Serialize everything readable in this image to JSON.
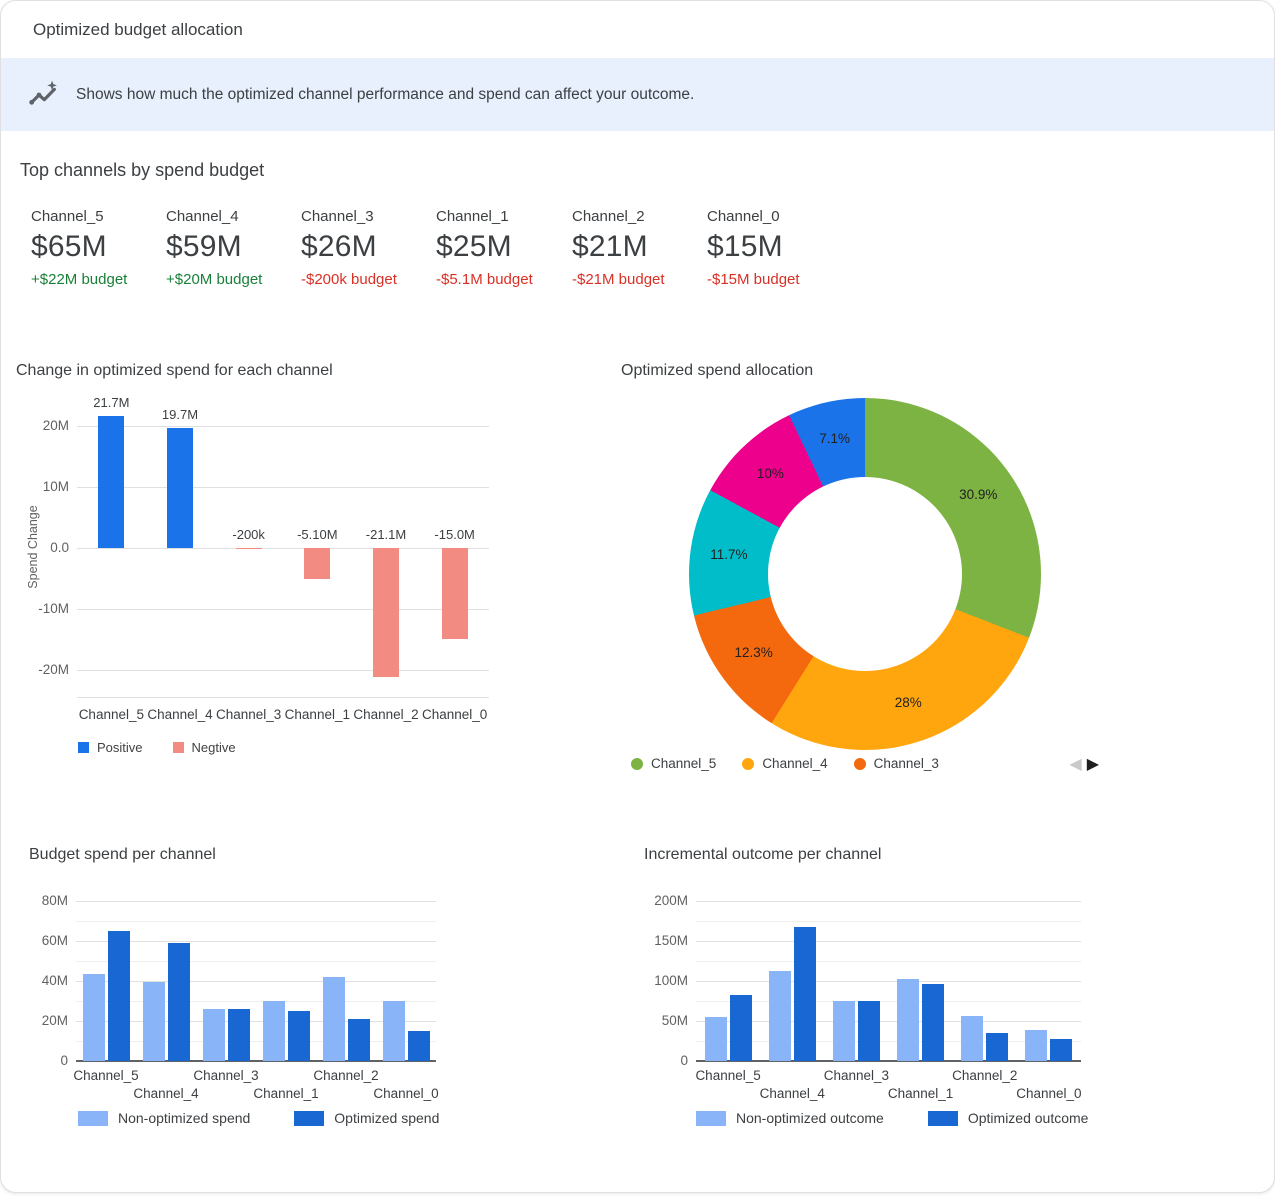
{
  "header": {
    "title": "Optimized budget allocation"
  },
  "banner": {
    "icon": "insights-icon",
    "text": "Shows how much the optimized channel performance and spend can affect your outcome.",
    "background": "#E8F0FE"
  },
  "top_channels": {
    "heading": "Top channels by spend budget",
    "cards": [
      {
        "name": "Channel_5",
        "value": "$65M",
        "budget": "+$22M budget",
        "direction": "up"
      },
      {
        "name": "Channel_4",
        "value": "$59M",
        "budget": "+$20M budget",
        "direction": "up"
      },
      {
        "name": "Channel_3",
        "value": "$26M",
        "budget": "-$200k budget",
        "direction": "down"
      },
      {
        "name": "Channel_1",
        "value": "$25M",
        "budget": "-$5.1M budget",
        "direction": "down"
      },
      {
        "name": "Channel_2",
        "value": "$21M",
        "budget": "-$21M budget",
        "direction": "down"
      },
      {
        "name": "Channel_0",
        "value": "$15M",
        "budget": "-$15M budget",
        "direction": "down"
      }
    ]
  },
  "colors": {
    "positive_text": "#188038",
    "negative_text": "#D93025",
    "positive_bar": "#1A73E8",
    "negative_bar": "#F28B82",
    "non_optimized_bar": "#8AB4F8",
    "optimized_bar": "#1967D2",
    "banner_bg": "#E8F0FE"
  },
  "chart_data": [
    {
      "id": "spend-change",
      "type": "bar",
      "title": "Change in optimized spend for each channel",
      "ylabel": "Spend Change",
      "categories": [
        "Channel_5",
        "Channel_4",
        "Channel_3",
        "Channel_1",
        "Channel_2",
        "Channel_0"
      ],
      "values": [
        21.7,
        19.7,
        -0.2,
        -5.1,
        -21.1,
        -15.0
      ],
      "bar_labels": [
        "21.7M",
        "19.7M",
        "-200k",
        "-5.10M",
        "-21.1M",
        "-15.0M"
      ],
      "unit": "millions",
      "ylim": [
        -24.6,
        22.5
      ],
      "yticks": [
        {
          "value": 20,
          "label": "20M"
        },
        {
          "value": 10,
          "label": "10M"
        },
        {
          "value": 0,
          "label": "0.0"
        },
        {
          "value": -10,
          "label": "-10M"
        },
        {
          "value": -20,
          "label": "-20M"
        }
      ],
      "positive_color": "#1A73E8",
      "negative_color": "#F28B82",
      "legend": [
        {
          "label": "Positive",
          "color": "#1A73E8"
        },
        {
          "label": "Negtive",
          "color": "#F28B82"
        }
      ],
      "grid": true,
      "legend_position": "bottom-left"
    },
    {
      "id": "spend-allocation",
      "type": "pie",
      "title": "Optimized spend allocation",
      "slices": [
        {
          "pct": 30.9,
          "label": "30.9%",
          "color": "#7CB342",
          "channel": "Channel_5"
        },
        {
          "pct": 28.0,
          "label": "28%",
          "color": "#FFA60E",
          "channel": "Channel_4"
        },
        {
          "pct": 12.3,
          "label": "12.3%",
          "color": "#F4690D",
          "channel": "Channel_3"
        },
        {
          "pct": 11.7,
          "label": "11.7%",
          "color": "#00BDC9"
        },
        {
          "pct": 10.0,
          "label": "10%",
          "color": "#EC008C"
        },
        {
          "pct": 7.1,
          "label": "7.1%",
          "color": "#1A73E8"
        }
      ],
      "legend": [
        {
          "label": "Channel_5",
          "color": "#7CB342"
        },
        {
          "label": "Channel_4",
          "color": "#FFA60E"
        },
        {
          "label": "Channel_3",
          "color": "#F4690D"
        }
      ],
      "pagination": {
        "prev": "◀",
        "next": "▶"
      },
      "legend_position": "bottom-left"
    },
    {
      "id": "budget-spend",
      "type": "grouped-bar",
      "title": "Budget spend per channel",
      "categories": [
        "Channel_5",
        "Channel_4",
        "Channel_3",
        "Channel_1",
        "Channel_2",
        "Channel_0"
      ],
      "series": [
        {
          "name": "Non-optimized spend",
          "color": "#8AB4F8",
          "values": [
            43.3,
            39.3,
            26.2,
            30.1,
            42.1,
            30.0
          ]
        },
        {
          "name": "Optimized spend",
          "color": "#1967D2",
          "values": [
            65,
            59,
            26,
            25,
            21,
            15
          ]
        }
      ],
      "unit": "millions",
      "ylim": [
        0,
        85
      ],
      "yticks": [
        {
          "value": 0,
          "label": "0"
        },
        {
          "value": 20,
          "label": "20M"
        },
        {
          "value": 40,
          "label": "40M"
        },
        {
          "value": 60,
          "label": "60M"
        },
        {
          "value": 80,
          "label": "80M"
        }
      ],
      "yticks_minor": [
        10,
        30,
        50,
        70
      ],
      "grid": true,
      "legend_position": "bottom-left"
    },
    {
      "id": "incremental-outcome",
      "type": "grouped-bar",
      "title": "Incremental outcome per channel",
      "categories": [
        "Channel_5",
        "Channel_4",
        "Channel_3",
        "Channel_1",
        "Channel_2",
        "Channel_0"
      ],
      "series": [
        {
          "name": "Non-optimized outcome",
          "color": "#8AB4F8",
          "values": [
            55,
            112,
            75,
            102,
            56,
            39
          ]
        },
        {
          "name": "Optimized outcome",
          "color": "#1967D2",
          "values": [
            83,
            167,
            75,
            96,
            35,
            27
          ]
        }
      ],
      "unit": "millions",
      "ylim": [
        0,
        212.5
      ],
      "yticks": [
        {
          "value": 0,
          "label": "0"
        },
        {
          "value": 50,
          "label": "50M"
        },
        {
          "value": 100,
          "label": "100M"
        },
        {
          "value": 150,
          "label": "150M"
        },
        {
          "value": 200,
          "label": "200M"
        }
      ],
      "yticks_minor": [
        25,
        75,
        125,
        175
      ],
      "grid": true,
      "legend_position": "bottom-left"
    }
  ]
}
